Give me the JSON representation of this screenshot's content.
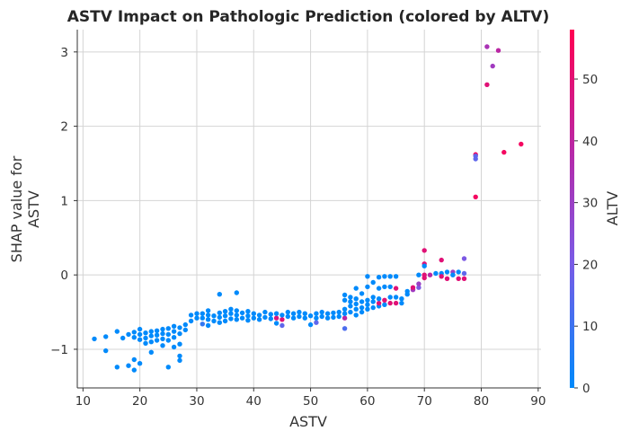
{
  "chart_data": {
    "type": "scatter",
    "title": "ASTV Impact on Pathologic Prediction (colored by ALTV)",
    "xlabel": "ASTV",
    "ylabel_lines": [
      "SHAP value for",
      "ASTV"
    ],
    "colorbar_label": "ALTV",
    "xlim": [
      9,
      90.5
    ],
    "ylim": [
      -1.52,
      3.3
    ],
    "xticks": [
      10,
      20,
      30,
      40,
      50,
      60,
      70,
      80,
      90
    ],
    "yticks": [
      -1,
      0,
      1,
      2,
      3
    ],
    "colorbar_ticks": [
      0,
      10,
      20,
      30,
      40,
      50
    ],
    "colorbar_range": [
      0,
      58
    ],
    "grid": true,
    "colormap": [
      "#008afb",
      "#7a5be6",
      "#b52aaa",
      "#ff0052"
    ],
    "points": [
      {
        "x": 12,
        "y": -0.86,
        "c": 0
      },
      {
        "x": 14,
        "y": -1.02,
        "c": 0
      },
      {
        "x": 14,
        "y": -0.83,
        "c": 0
      },
      {
        "x": 16,
        "y": -1.24,
        "c": 0
      },
      {
        "x": 16,
        "y": -0.76,
        "c": 0
      },
      {
        "x": 17,
        "y": -0.85,
        "c": 0
      },
      {
        "x": 18,
        "y": -1.22,
        "c": 0
      },
      {
        "x": 18,
        "y": -0.8,
        "c": 0
      },
      {
        "x": 19,
        "y": -1.28,
        "c": 0
      },
      {
        "x": 19,
        "y": -1.14,
        "c": 0
      },
      {
        "x": 19,
        "y": -0.84,
        "c": 0
      },
      {
        "x": 19,
        "y": -0.77,
        "c": 0
      },
      {
        "x": 20,
        "y": -1.19,
        "c": 0
      },
      {
        "x": 20,
        "y": -0.87,
        "c": 0
      },
      {
        "x": 20,
        "y": -0.8,
        "c": 0
      },
      {
        "x": 20,
        "y": -0.73,
        "c": 0
      },
      {
        "x": 21,
        "y": -0.92,
        "c": 0
      },
      {
        "x": 21,
        "y": -0.85,
        "c": 0
      },
      {
        "x": 21,
        "y": -0.78,
        "c": 0
      },
      {
        "x": 22,
        "y": -1.04,
        "c": 0
      },
      {
        "x": 22,
        "y": -0.9,
        "c": 0
      },
      {
        "x": 22,
        "y": -0.82,
        "c": 0
      },
      {
        "x": 22,
        "y": -0.76,
        "c": 0
      },
      {
        "x": 23,
        "y": -0.88,
        "c": 0
      },
      {
        "x": 23,
        "y": -0.81,
        "c": 0
      },
      {
        "x": 23,
        "y": -0.75,
        "c": 0
      },
      {
        "x": 24,
        "y": -0.95,
        "c": 0
      },
      {
        "x": 24,
        "y": -0.86,
        "c": 0
      },
      {
        "x": 24,
        "y": -0.79,
        "c": 0
      },
      {
        "x": 24,
        "y": -0.73,
        "c": 0
      },
      {
        "x": 25,
        "y": -1.24,
        "c": 0
      },
      {
        "x": 25,
        "y": -0.88,
        "c": 0
      },
      {
        "x": 25,
        "y": -0.8,
        "c": 0
      },
      {
        "x": 25,
        "y": -0.72,
        "c": 0
      },
      {
        "x": 26,
        "y": -0.97,
        "c": 0
      },
      {
        "x": 26,
        "y": -0.84,
        "c": 0
      },
      {
        "x": 26,
        "y": -0.76,
        "c": 0
      },
      {
        "x": 26,
        "y": -0.69,
        "c": 0
      },
      {
        "x": 27,
        "y": -1.15,
        "c": 0
      },
      {
        "x": 27,
        "y": -1.09,
        "c": 0
      },
      {
        "x": 27,
        "y": -0.93,
        "c": 0
      },
      {
        "x": 27,
        "y": -0.79,
        "c": 0
      },
      {
        "x": 27,
        "y": -0.71,
        "c": 0
      },
      {
        "x": 28,
        "y": -0.74,
        "c": 0
      },
      {
        "x": 28,
        "y": -0.67,
        "c": 0
      },
      {
        "x": 29,
        "y": -0.62,
        "c": 0
      },
      {
        "x": 29,
        "y": -0.54,
        "c": 0
      },
      {
        "x": 30,
        "y": -0.58,
        "c": 0
      },
      {
        "x": 30,
        "y": -0.52,
        "c": 0
      },
      {
        "x": 31,
        "y": -0.66,
        "c": 8
      },
      {
        "x": 31,
        "y": -0.58,
        "c": 0
      },
      {
        "x": 31,
        "y": -0.52,
        "c": 0
      },
      {
        "x": 32,
        "y": -0.68,
        "c": 0
      },
      {
        "x": 32,
        "y": -0.6,
        "c": 0
      },
      {
        "x": 32,
        "y": -0.54,
        "c": 0
      },
      {
        "x": 32,
        "y": -0.48,
        "c": 0
      },
      {
        "x": 33,
        "y": -0.62,
        "c": 0
      },
      {
        "x": 33,
        "y": -0.55,
        "c": 0
      },
      {
        "x": 34,
        "y": -0.64,
        "c": 0
      },
      {
        "x": 34,
        "y": -0.57,
        "c": 0
      },
      {
        "x": 34,
        "y": -0.51,
        "c": 0
      },
      {
        "x": 34,
        "y": -0.26,
        "c": 0
      },
      {
        "x": 35,
        "y": -0.62,
        "c": 0
      },
      {
        "x": 35,
        "y": -0.55,
        "c": 0
      },
      {
        "x": 35,
        "y": -0.49,
        "c": 0
      },
      {
        "x": 36,
        "y": -0.59,
        "c": 0
      },
      {
        "x": 36,
        "y": -0.52,
        "c": 0
      },
      {
        "x": 36,
        "y": -0.46,
        "c": 0
      },
      {
        "x": 37,
        "y": -0.6,
        "c": 0
      },
      {
        "x": 37,
        "y": -0.54,
        "c": 0
      },
      {
        "x": 37,
        "y": -0.48,
        "c": 0
      },
      {
        "x": 37,
        "y": -0.24,
        "c": 0
      },
      {
        "x": 38,
        "y": -0.58,
        "c": 0
      },
      {
        "x": 38,
        "y": -0.51,
        "c": 0
      },
      {
        "x": 39,
        "y": -0.61,
        "c": 0
      },
      {
        "x": 39,
        "y": -0.55,
        "c": 0
      },
      {
        "x": 39,
        "y": -0.49,
        "c": 0
      },
      {
        "x": 40,
        "y": -0.58,
        "c": 0
      },
      {
        "x": 40,
        "y": -0.52,
        "c": 0
      },
      {
        "x": 41,
        "y": -0.6,
        "c": 0
      },
      {
        "x": 41,
        "y": -0.54,
        "c": 0
      },
      {
        "x": 42,
        "y": -0.57,
        "c": 0
      },
      {
        "x": 42,
        "y": -0.5,
        "c": 0
      },
      {
        "x": 43,
        "y": -0.59,
        "c": 0
      },
      {
        "x": 43,
        "y": -0.53,
        "c": 0
      },
      {
        "x": 44,
        "y": -0.65,
        "c": 0
      },
      {
        "x": 44,
        "y": -0.58,
        "c": 48
      },
      {
        "x": 44,
        "y": -0.52,
        "c": 0
      },
      {
        "x": 45,
        "y": -0.68,
        "c": 15
      },
      {
        "x": 45,
        "y": -0.6,
        "c": 50
      },
      {
        "x": 45,
        "y": -0.54,
        "c": 0
      },
      {
        "x": 46,
        "y": -0.56,
        "c": 0
      },
      {
        "x": 46,
        "y": -0.5,
        "c": 0
      },
      {
        "x": 47,
        "y": -0.58,
        "c": 0
      },
      {
        "x": 47,
        "y": -0.52,
        "c": 0
      },
      {
        "x": 48,
        "y": -0.56,
        "c": 0
      },
      {
        "x": 48,
        "y": -0.5,
        "c": 0
      },
      {
        "x": 49,
        "y": -0.58,
        "c": 0
      },
      {
        "x": 49,
        "y": -0.52,
        "c": 0
      },
      {
        "x": 50,
        "y": -0.67,
        "c": 0
      },
      {
        "x": 50,
        "y": -0.55,
        "c": 0
      },
      {
        "x": 51,
        "y": -0.64,
        "c": 15
      },
      {
        "x": 51,
        "y": -0.58,
        "c": 0
      },
      {
        "x": 51,
        "y": -0.52,
        "c": 0
      },
      {
        "x": 52,
        "y": -0.56,
        "c": 0
      },
      {
        "x": 52,
        "y": -0.5,
        "c": 0
      },
      {
        "x": 53,
        "y": -0.58,
        "c": 0
      },
      {
        "x": 53,
        "y": -0.52,
        "c": 0
      },
      {
        "x": 54,
        "y": -0.57,
        "c": 0
      },
      {
        "x": 54,
        "y": -0.51,
        "c": 0
      },
      {
        "x": 55,
        "y": -0.56,
        "c": 0
      },
      {
        "x": 55,
        "y": -0.5,
        "c": 0
      },
      {
        "x": 56,
        "y": -0.72,
        "c": 12
      },
      {
        "x": 56,
        "y": -0.58,
        "c": 40
      },
      {
        "x": 56,
        "y": -0.52,
        "c": 0
      },
      {
        "x": 56,
        "y": -0.46,
        "c": 0
      },
      {
        "x": 56,
        "y": -0.34,
        "c": 0
      },
      {
        "x": 56,
        "y": -0.27,
        "c": 0
      },
      {
        "x": 57,
        "y": -0.5,
        "c": 0
      },
      {
        "x": 57,
        "y": -0.42,
        "c": 0
      },
      {
        "x": 57,
        "y": -0.36,
        "c": 0
      },
      {
        "x": 57,
        "y": -0.3,
        "c": 0
      },
      {
        "x": 58,
        "y": -0.54,
        "c": 0
      },
      {
        "x": 58,
        "y": -0.46,
        "c": 0
      },
      {
        "x": 58,
        "y": -0.39,
        "c": 0
      },
      {
        "x": 58,
        "y": -0.32,
        "c": 0
      },
      {
        "x": 58,
        "y": -0.18,
        "c": 0
      },
      {
        "x": 59,
        "y": -0.5,
        "c": 0
      },
      {
        "x": 59,
        "y": -0.44,
        "c": 0
      },
      {
        "x": 59,
        "y": -0.36,
        "c": 0
      },
      {
        "x": 59,
        "y": -0.25,
        "c": 0
      },
      {
        "x": 60,
        "y": -0.46,
        "c": 0
      },
      {
        "x": 60,
        "y": -0.4,
        "c": 0
      },
      {
        "x": 60,
        "y": -0.34,
        "c": 0
      },
      {
        "x": 60,
        "y": -0.16,
        "c": 0
      },
      {
        "x": 60,
        "y": -0.02,
        "c": 0
      },
      {
        "x": 61,
        "y": -0.44,
        "c": 0
      },
      {
        "x": 61,
        "y": -0.36,
        "c": 0
      },
      {
        "x": 61,
        "y": -0.3,
        "c": 0
      },
      {
        "x": 61,
        "y": -0.1,
        "c": 0
      },
      {
        "x": 62,
        "y": -0.42,
        "c": 0
      },
      {
        "x": 62,
        "y": -0.38,
        "c": 50
      },
      {
        "x": 62,
        "y": -0.32,
        "c": 0
      },
      {
        "x": 62,
        "y": -0.18,
        "c": 0
      },
      {
        "x": 62,
        "y": -0.03,
        "c": 0
      },
      {
        "x": 63,
        "y": -0.4,
        "c": 0
      },
      {
        "x": 63,
        "y": -0.34,
        "c": 50
      },
      {
        "x": 63,
        "y": -0.16,
        "c": 0
      },
      {
        "x": 63,
        "y": -0.02,
        "c": 0
      },
      {
        "x": 64,
        "y": -0.38,
        "c": 50
      },
      {
        "x": 64,
        "y": -0.3,
        "c": 0
      },
      {
        "x": 64,
        "y": -0.16,
        "c": 0
      },
      {
        "x": 64,
        "y": -0.02,
        "c": 0
      },
      {
        "x": 65,
        "y": -0.38,
        "c": 50
      },
      {
        "x": 65,
        "y": -0.3,
        "c": 0
      },
      {
        "x": 65,
        "y": -0.18,
        "c": 50
      },
      {
        "x": 65,
        "y": -0.02,
        "c": 0
      },
      {
        "x": 66,
        "y": -0.38,
        "c": 0
      },
      {
        "x": 66,
        "y": -0.32,
        "c": 0
      },
      {
        "x": 67,
        "y": -0.26,
        "c": 0
      },
      {
        "x": 67,
        "y": -0.22,
        "c": 0
      },
      {
        "x": 68,
        "y": -0.2,
        "c": 32
      },
      {
        "x": 68,
        "y": -0.17,
        "c": 50
      },
      {
        "x": 69,
        "y": -0.17,
        "c": 20
      },
      {
        "x": 69,
        "y": -0.12,
        "c": 30
      },
      {
        "x": 69,
        "y": 0.0,
        "c": 0
      },
      {
        "x": 70,
        "y": 0.33,
        "c": 50
      },
      {
        "x": 70,
        "y": 0.15,
        "c": 50
      },
      {
        "x": 70,
        "y": 0.12,
        "c": 0
      },
      {
        "x": 70,
        "y": 0.0,
        "c": 50
      },
      {
        "x": 70,
        "y": -0.04,
        "c": 50
      },
      {
        "x": 71,
        "y": 0.0,
        "c": 40
      },
      {
        "x": 72,
        "y": 0.02,
        "c": 0
      },
      {
        "x": 73,
        "y": 0.2,
        "c": 50
      },
      {
        "x": 73,
        "y": 0.02,
        "c": 0
      },
      {
        "x": 73,
        "y": -0.02,
        "c": 50
      },
      {
        "x": 74,
        "y": 0.04,
        "c": 0
      },
      {
        "x": 74,
        "y": -0.05,
        "c": 50
      },
      {
        "x": 75,
        "y": 0.04,
        "c": 30
      },
      {
        "x": 75,
        "y": 0.0,
        "c": 0
      },
      {
        "x": 76,
        "y": 0.04,
        "c": 0
      },
      {
        "x": 76,
        "y": -0.05,
        "c": 50
      },
      {
        "x": 77,
        "y": 0.22,
        "c": 20
      },
      {
        "x": 77,
        "y": 0.02,
        "c": 15
      },
      {
        "x": 77,
        "y": -0.05,
        "c": 50
      },
      {
        "x": 79,
        "y": 1.62,
        "c": 55
      },
      {
        "x": 79,
        "y": 1.6,
        "c": 15
      },
      {
        "x": 79,
        "y": 1.56,
        "c": 15
      },
      {
        "x": 79,
        "y": 1.05,
        "c": 55
      },
      {
        "x": 81,
        "y": 3.07,
        "c": 35
      },
      {
        "x": 81,
        "y": 2.56,
        "c": 50
      },
      {
        "x": 82,
        "y": 2.81,
        "c": 32
      },
      {
        "x": 83,
        "y": 3.02,
        "c": 40
      },
      {
        "x": 84,
        "y": 1.65,
        "c": 55
      },
      {
        "x": 87,
        "y": 1.76,
        "c": 55
      }
    ]
  }
}
